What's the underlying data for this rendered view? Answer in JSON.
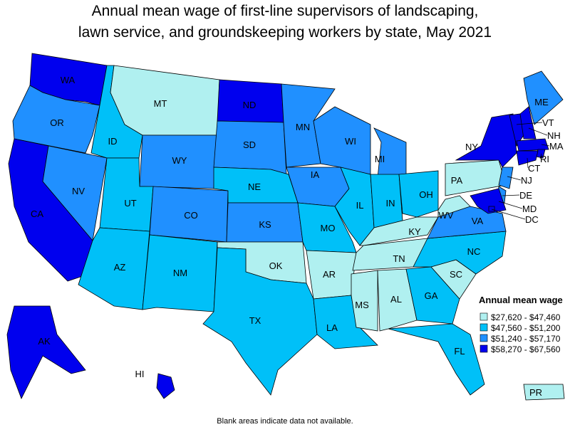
{
  "title": [
    "Annual mean wage of first-line supervisors of landscaping,",
    "lawn service, and groundskeeping workers by state, May 2021"
  ],
  "legend": {
    "title": "Annual mean wage",
    "items": [
      {
        "label": "$27,620 - $47,460",
        "color": "#b0f0f0"
      },
      {
        "label": "$47,560 - $51,200",
        "color": "#00c0f8"
      },
      {
        "label": "$51,240 - $57,170",
        "color": "#2090ff"
      },
      {
        "label": "$58,270 - $67,560",
        "color": "#0000ee"
      }
    ]
  },
  "states": [
    {
      "label": "WA",
      "color": "#0000ee"
    },
    {
      "label": "OR",
      "color": "#2090ff"
    },
    {
      "label": "CA",
      "color": "#0000ee"
    },
    {
      "label": "NV",
      "color": "#2090ff"
    },
    {
      "label": "ID",
      "color": "#00c0f8"
    },
    {
      "label": "MT",
      "color": "#b0f0f0"
    },
    {
      "label": "WY",
      "color": "#2090ff"
    },
    {
      "label": "UT",
      "color": "#00c0f8"
    },
    {
      "label": "CO",
      "color": "#2090ff"
    },
    {
      "label": "AZ",
      "color": "#00c0f8"
    },
    {
      "label": "NM",
      "color": "#00c0f8"
    },
    {
      "label": "ND",
      "color": "#0000ee"
    },
    {
      "label": "SD",
      "color": "#2090ff"
    },
    {
      "label": "NE",
      "color": "#00c0f8"
    },
    {
      "label": "KS",
      "color": "#2090ff"
    },
    {
      "label": "OK",
      "color": "#b0f0f0"
    },
    {
      "label": "TX",
      "color": "#00c0f8"
    },
    {
      "label": "MN",
      "color": "#2090ff"
    },
    {
      "label": "IA",
      "color": "#2090ff"
    },
    {
      "label": "MO",
      "color": "#00c0f8"
    },
    {
      "label": "AR",
      "color": "#b0f0f0"
    },
    {
      "label": "LA",
      "color": "#00c0f8"
    },
    {
      "label": "WI",
      "color": "#2090ff"
    },
    {
      "label": "IL",
      "color": "#00c0f8"
    },
    {
      "label": "MS",
      "color": "#b0f0f0"
    },
    {
      "label": "MI",
      "color": "#2090ff"
    },
    {
      "label": "IN",
      "color": "#00c0f8"
    },
    {
      "label": "KY",
      "color": "#b0f0f0"
    },
    {
      "label": "TN",
      "color": "#b0f0f0"
    },
    {
      "label": "AL",
      "color": "#b0f0f0"
    },
    {
      "label": "OH",
      "color": "#00c0f8"
    },
    {
      "label": "WV",
      "color": "#b0f0f0"
    },
    {
      "label": "GA",
      "color": "#00c0f8"
    },
    {
      "label": "FL",
      "color": "#00c0f8"
    },
    {
      "label": "SC",
      "color": "#b0f0f0"
    },
    {
      "label": "NC",
      "color": "#00c0f8"
    },
    {
      "label": "VA",
      "color": "#2090ff"
    },
    {
      "label": "PA",
      "color": "#b0f0f0"
    },
    {
      "label": "NY",
      "color": "#0000ee"
    },
    {
      "label": "ME",
      "color": "#2090ff"
    },
    {
      "label": "VT",
      "color": "#0000ee"
    },
    {
      "label": "NH",
      "color": "#0000ee"
    },
    {
      "label": "MA",
      "color": "#0000ee"
    },
    {
      "label": "RI",
      "color": "#0000ee"
    },
    {
      "label": "CT",
      "color": "#0000ee"
    },
    {
      "label": "NJ",
      "color": "#2090ff"
    },
    {
      "label": "DE",
      "color": "#2090ff"
    },
    {
      "label": "MD",
      "color": "#0000ee"
    },
    {
      "label": "DC",
      "color": "#0000ee"
    },
    {
      "label": "AK",
      "color": "#0000ee"
    },
    {
      "label": "HI",
      "color": "#0000ee"
    },
    {
      "label": "PR",
      "color": "#b0f0f0"
    }
  ],
  "footnote": "Blank areas indicate data not available."
}
